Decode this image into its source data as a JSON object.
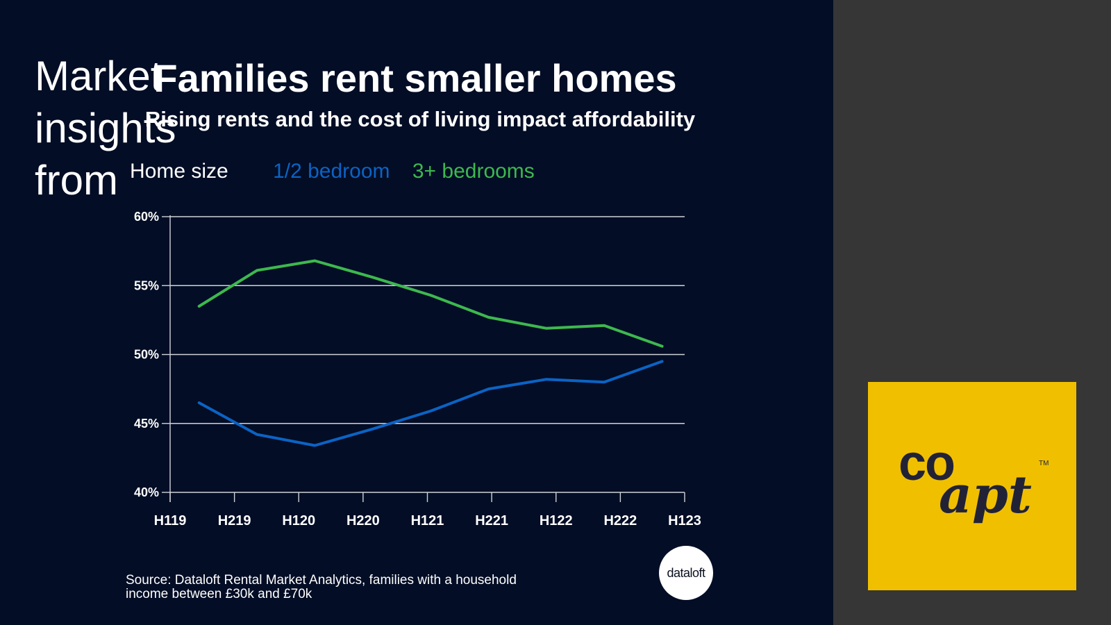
{
  "colors": {
    "main_background": "#030d25",
    "side_background": "#363636",
    "series_1": "#0b63c4",
    "series_2": "#3db84f",
    "logo_background": "#f0c000"
  },
  "header": {
    "title": "Families rent smaller homes",
    "subtitle": "Rising rents and the cost of living impact affordability"
  },
  "legend": {
    "title": "Home size"
  },
  "source": {
    "line1": "Source: Dataloft Rental Market Analytics, families with a household",
    "line2": "income between £30k and £70k"
  },
  "dataloft_logo": {
    "text": "dataloft"
  },
  "side": {
    "insights_lines": [
      "Market",
      "insights",
      "from"
    ],
    "logo": {
      "co": "co",
      "apt": "apt",
      "tm": "TM"
    }
  },
  "chart_data": {
    "type": "line",
    "title": "Families rent smaller homes",
    "subtitle": "Rising rents and the cost of living impact affordability",
    "xlabel": "",
    "ylabel": "",
    "x_ticks": [
      "H119",
      "H219",
      "H120",
      "H220",
      "H121",
      "H221",
      "H122",
      "H222",
      "H123"
    ],
    "x": [
      0.45,
      1.35,
      2.25,
      3.15,
      4.05,
      4.95,
      5.85,
      6.75,
      7.65
    ],
    "ylim": [
      40,
      60
    ],
    "y_ticks": [
      "40%",
      "45%",
      "50%",
      "55%",
      "60%"
    ],
    "y_tick_values": [
      40,
      45,
      50,
      55,
      60
    ],
    "grid": true,
    "legend_position": "top-left",
    "series": [
      {
        "name": "1/2 bedroom",
        "color": "#0b63c4",
        "values": [
          46.5,
          44.2,
          43.4,
          44.6,
          45.9,
          47.5,
          48.2,
          48.0,
          49.5
        ]
      },
      {
        "name": "3+ bedrooms",
        "color": "#3db84f",
        "values": [
          53.5,
          56.1,
          56.8,
          55.6,
          54.3,
          52.7,
          51.9,
          52.1,
          50.6
        ]
      }
    ]
  }
}
